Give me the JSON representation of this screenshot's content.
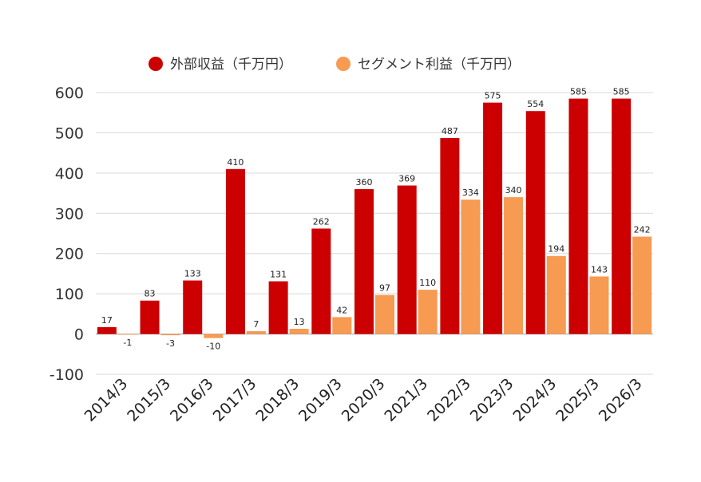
{
  "chart_data": {
    "type": "bar",
    "categories": [
      "2014/3",
      "2015/3",
      "2016/3",
      "2017/3",
      "2018/3",
      "2019/3",
      "2020/3",
      "2021/3",
      "2022/3",
      "2023/3",
      "2024/3",
      "2025/3",
      "2026/3"
    ],
    "series": [
      {
        "name": "外部収益（千万円）",
        "color": "#cc0000",
        "values": [
          17,
          83,
          133,
          410,
          131,
          262,
          360,
          369,
          487,
          575,
          554,
          585,
          585
        ]
      },
      {
        "name": "セグメント利益（千万円）",
        "color": "#f79a52",
        "values": [
          -1,
          -3,
          -10,
          7,
          13,
          42,
          97,
          110,
          334,
          340,
          194,
          143,
          242
        ]
      }
    ],
    "ylim": [
      -100,
      600
    ],
    "yticks": [
      -100,
      0,
      100,
      200,
      300,
      400,
      500,
      600
    ],
    "grid": true,
    "legend_position": "top-center",
    "title": "",
    "xlabel": "",
    "ylabel": ""
  }
}
